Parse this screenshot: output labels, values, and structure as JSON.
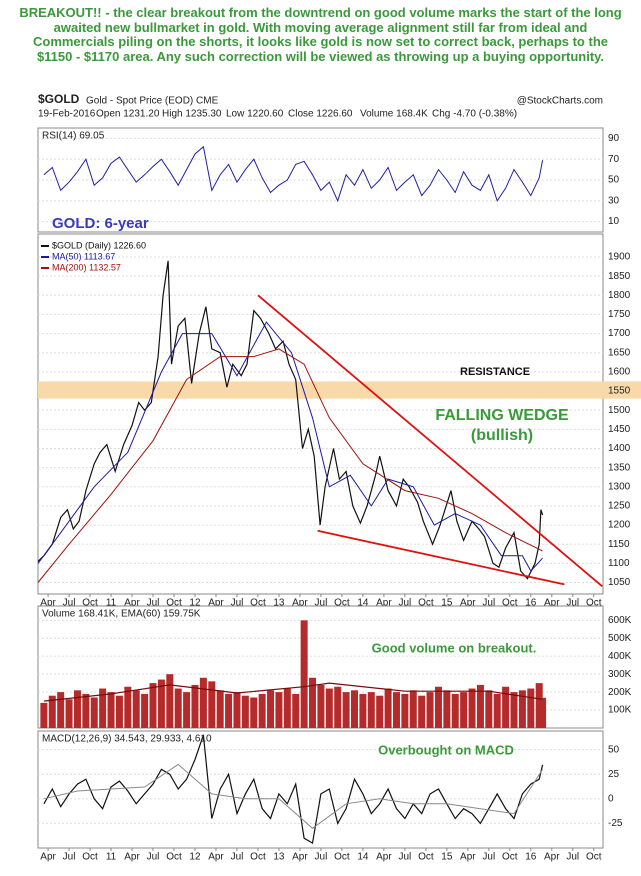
{
  "header": {
    "note": "BREAKOUT!! - the clear breakout from the downtrend on good volume marks the start of the long awaited new bullmarket in gold. With moving average alignment still far from ideal and Commercials piling on the shorts, it looks like gold is now set to correct back, perhaps to the $1150 - $1170 area. Any such correction will be viewed as throwing up a buying opportunity.",
    "symbol": "$GOLD",
    "name": "Gold - Spot Price (EOD) CME",
    "source": "@StockCharts.com",
    "date": "19-Feb-2016",
    "open": "Open 1231.20",
    "high": "High 1235.30",
    "low": "Low 1220.60",
    "close": "Close 1226.60",
    "volume": "Volume 168.4K",
    "change": "Chg -4.70 (-0.38%)"
  },
  "chart_data": [
    {
      "type": "line",
      "title": "RSI(14) 69.05",
      "color": "#2020a0",
      "xlim": [
        2010.13,
        2016.86
      ],
      "ylim": [
        0,
        100
      ],
      "yticks": [
        10,
        30,
        50,
        70,
        90
      ],
      "grid": true,
      "x": [
        2010.2,
        2010.3,
        2010.4,
        2010.5,
        2010.6,
        2010.7,
        2010.8,
        2010.9,
        2011.0,
        2011.1,
        2011.2,
        2011.3,
        2011.4,
        2011.5,
        2011.6,
        2011.7,
        2011.8,
        2011.9,
        2012.0,
        2012.1,
        2012.2,
        2012.3,
        2012.4,
        2012.5,
        2012.6,
        2012.7,
        2012.8,
        2012.9,
        2013.0,
        2013.1,
        2013.2,
        2013.3,
        2013.4,
        2013.5,
        2013.6,
        2013.7,
        2013.8,
        2013.9,
        2014.0,
        2014.1,
        2014.2,
        2014.3,
        2014.4,
        2014.5,
        2014.6,
        2014.7,
        2014.8,
        2014.9,
        2015.0,
        2015.1,
        2015.2,
        2015.3,
        2015.4,
        2015.5,
        2015.6,
        2015.7,
        2015.8,
        2015.9,
        2016.0,
        2016.1,
        2016.14
      ],
      "values": [
        55,
        62,
        40,
        48,
        58,
        70,
        45,
        52,
        66,
        72,
        60,
        48,
        55,
        63,
        70,
        58,
        45,
        60,
        75,
        82,
        40,
        55,
        65,
        48,
        60,
        70,
        52,
        38,
        45,
        50,
        65,
        68,
        55,
        40,
        48,
        30,
        55,
        45,
        60,
        42,
        50,
        62,
        40,
        48,
        55,
        35,
        45,
        60,
        50,
        38,
        58,
        45,
        40,
        55,
        30,
        42,
        60,
        48,
        35,
        52,
        69.05
      ]
    },
    {
      "type": "line",
      "title": "GOLD: 6-year",
      "xlim": [
        2010.13,
        2016.86
      ],
      "ylim": [
        1020,
        1960
      ],
      "yticks": [
        1050,
        1100,
        1150,
        1200,
        1250,
        1300,
        1350,
        1400,
        1450,
        1500,
        1550,
        1600,
        1650,
        1700,
        1750,
        1800,
        1850,
        1900
      ],
      "grid": true,
      "xticks": [
        {
          "value": 2010.25,
          "label": "Apr"
        },
        {
          "value": 2010.5,
          "label": "Jul"
        },
        {
          "value": 2010.75,
          "label": "Oct"
        },
        {
          "value": 2011,
          "label": "11"
        },
        {
          "value": 2011.25,
          "label": "Apr"
        },
        {
          "value": 2011.5,
          "label": "Jul"
        },
        {
          "value": 2011.75,
          "label": "Oct"
        },
        {
          "value": 2012,
          "label": "12"
        },
        {
          "value": 2012.25,
          "label": "Apr"
        },
        {
          "value": 2012.5,
          "label": "Jul"
        },
        {
          "value": 2012.75,
          "label": "Oct"
        },
        {
          "value": 2013,
          "label": "13"
        },
        {
          "value": 2013.25,
          "label": "Apr"
        },
        {
          "value": 2013.5,
          "label": "Jul"
        },
        {
          "value": 2013.75,
          "label": "Oct"
        },
        {
          "value": 2014,
          "label": "14"
        },
        {
          "value": 2014.25,
          "label": "Apr"
        },
        {
          "value": 2014.5,
          "label": "Jul"
        },
        {
          "value": 2014.75,
          "label": "Oct"
        },
        {
          "value": 2015,
          "label": "15"
        },
        {
          "value": 2015.25,
          "label": "Apr"
        },
        {
          "value": 2015.5,
          "label": "Jul"
        },
        {
          "value": 2015.75,
          "label": "Oct"
        },
        {
          "value": 2016,
          "label": "16"
        },
        {
          "value": 2016.25,
          "label": "Apr"
        },
        {
          "value": 2016.5,
          "label": "Jul"
        },
        {
          "value": 2016.75,
          "label": "Oct"
        }
      ],
      "resistance_band": [
        1530,
        1575
      ],
      "band_color": "#f9d9a8",
      "annotations": [
        "RESISTANCE",
        "FALLING WEDGE",
        "(bullish)"
      ],
      "trendlines": [
        {
          "x": [
            2012.75,
            2016.85
          ],
          "values": [
            1800,
            1040
          ]
        },
        {
          "x": [
            2013.46,
            2016.4
          ],
          "values": [
            1185,
            1045
          ]
        }
      ],
      "trend_color": "#e01010",
      "series": [
        {
          "name": "$GOLD (Daily) 1226.60",
          "color": "#111111",
          "x": [
            2010.13,
            2010.2,
            2010.3,
            2010.4,
            2010.48,
            2010.55,
            2010.62,
            2010.7,
            2010.8,
            2010.87,
            2010.95,
            2011.05,
            2011.15,
            2011.25,
            2011.33,
            2011.4,
            2011.48,
            2011.56,
            2011.62,
            2011.68,
            2011.72,
            2011.8,
            2011.88,
            2011.96,
            2012.05,
            2012.13,
            2012.2,
            2012.3,
            2012.38,
            2012.45,
            2012.55,
            2012.62,
            2012.7,
            2012.78,
            2012.88,
            2012.96,
            2013.05,
            2013.12,
            2013.2,
            2013.28,
            2013.35,
            2013.42,
            2013.49,
            2013.55,
            2013.65,
            2013.72,
            2013.8,
            2013.88,
            2013.97,
            2014.05,
            2014.15,
            2014.2,
            2014.3,
            2014.4,
            2014.48,
            2014.55,
            2014.65,
            2014.72,
            2014.83,
            2014.92,
            2015.05,
            2015.12,
            2015.2,
            2015.3,
            2015.38,
            2015.45,
            2015.55,
            2015.62,
            2015.7,
            2015.8,
            2015.88,
            2015.96,
            2016.05,
            2016.1,
            2016.12,
            2016.14
          ],
          "values": [
            1105,
            1120,
            1150,
            1220,
            1240,
            1190,
            1210,
            1290,
            1360,
            1390,
            1410,
            1340,
            1410,
            1460,
            1520,
            1500,
            1520,
            1640,
            1800,
            1890,
            1620,
            1720,
            1740,
            1570,
            1700,
            1770,
            1660,
            1650,
            1560,
            1620,
            1590,
            1620,
            1760,
            1740,
            1700,
            1660,
            1680,
            1620,
            1580,
            1400,
            1450,
            1380,
            1200,
            1300,
            1400,
            1320,
            1340,
            1250,
            1205,
            1250,
            1330,
            1380,
            1290,
            1250,
            1320,
            1300,
            1260,
            1210,
            1150,
            1200,
            1290,
            1210,
            1160,
            1210,
            1190,
            1170,
            1100,
            1090,
            1140,
            1180,
            1080,
            1060,
            1100,
            1150,
            1240,
            1226.6
          ]
        },
        {
          "name": "MA(50) 1113.67",
          "color": "#1a1aa0",
          "x": [
            2010.13,
            2010.4,
            2010.8,
            2011.2,
            2011.6,
            2011.85,
            2012.2,
            2012.5,
            2012.85,
            2013.15,
            2013.4,
            2013.6,
            2013.85,
            2014.1,
            2014.3,
            2014.6,
            2014.85,
            2015.1,
            2015.4,
            2015.65,
            2015.9,
            2016.0,
            2016.14
          ],
          "values": [
            1100,
            1180,
            1300,
            1390,
            1600,
            1700,
            1700,
            1590,
            1730,
            1650,
            1480,
            1300,
            1330,
            1250,
            1320,
            1300,
            1200,
            1230,
            1200,
            1120,
            1120,
            1080,
            1113.67
          ]
        },
        {
          "name": "MA(200) 1132.57",
          "color": "#a01010",
          "x": [
            2010.13,
            2010.5,
            2011.0,
            2011.5,
            2011.9,
            2012.3,
            2012.7,
            2013.0,
            2013.3,
            2013.6,
            2014.0,
            2014.5,
            2014.9,
            2015.3,
            2015.7,
            2016.14
          ],
          "values": [
            1050,
            1150,
            1280,
            1420,
            1580,
            1640,
            1640,
            1660,
            1620,
            1480,
            1360,
            1290,
            1270,
            1230,
            1180,
            1132.57
          ]
        }
      ]
    },
    {
      "type": "bar",
      "title": "Volume 168.41K, EMA(60) 159.75K",
      "color": "#b52a2a",
      "annotation": "Good volume on breakout.",
      "xlim": [
        2010.13,
        2016.86
      ],
      "ylim": [
        0,
        680000
      ],
      "yticks": [
        {
          "value": 100000,
          "label": "100K"
        },
        {
          "value": 200000,
          "label": "200K"
        },
        {
          "value": 300000,
          "label": "300K"
        },
        {
          "value": 400000,
          "label": "400K"
        },
        {
          "value": 500000,
          "label": "500K"
        },
        {
          "value": 600000,
          "label": "600K"
        }
      ],
      "grid": true,
      "x": [
        2010.2,
        2010.3,
        2010.4,
        2010.5,
        2010.6,
        2010.7,
        2010.8,
        2010.9,
        2011.0,
        2011.1,
        2011.2,
        2011.3,
        2011.4,
        2011.5,
        2011.6,
        2011.7,
        2011.8,
        2011.9,
        2012.0,
        2012.1,
        2012.2,
        2012.3,
        2012.4,
        2012.5,
        2012.6,
        2012.7,
        2012.8,
        2012.9,
        2013.0,
        2013.1,
        2013.2,
        2013.3,
        2013.4,
        2013.5,
        2013.6,
        2013.7,
        2013.8,
        2013.9,
        2014.0,
        2014.1,
        2014.2,
        2014.3,
        2014.4,
        2014.5,
        2014.6,
        2014.7,
        2014.8,
        2014.9,
        2015.0,
        2015.1,
        2015.2,
        2015.3,
        2015.4,
        2015.5,
        2015.6,
        2015.7,
        2015.8,
        2015.9,
        2016.0,
        2016.1,
        2016.14
      ],
      "values": [
        140000,
        180000,
        200000,
        160000,
        210000,
        190000,
        170000,
        220000,
        200000,
        180000,
        230000,
        210000,
        190000,
        250000,
        270000,
        300000,
        220000,
        200000,
        240000,
        280000,
        260000,
        210000,
        190000,
        200000,
        180000,
        170000,
        190000,
        210000,
        200000,
        220000,
        190000,
        600000,
        280000,
        240000,
        220000,
        230000,
        200000,
        210000,
        190000,
        200000,
        180000,
        220000,
        200000,
        190000,
        210000,
        180000,
        200000,
        230000,
        210000,
        190000,
        200000,
        220000,
        240000,
        210000,
        190000,
        230000,
        200000,
        210000,
        220000,
        250000,
        168410
      ],
      "ema": {
        "color": "#7a0a0a",
        "x": [
          2010.2,
          2011.0,
          2011.7,
          2012.5,
          2013.3,
          2013.6,
          2014.5,
          2015.5,
          2016.14
        ],
        "values": [
          150000,
          190000,
          240000,
          195000,
          230000,
          250000,
          205000,
          205000,
          159750
        ]
      }
    },
    {
      "type": "line",
      "title": "MACD(12,26,9) 34.543, 29.933, 4.610",
      "annotation": "Overbought on MACD",
      "xlim": [
        2010.13,
        2016.86
      ],
      "ylim": [
        -50,
        69
      ],
      "yticks": [
        -25,
        0,
        25,
        50
      ],
      "grid": true,
      "xticks": [
        {
          "value": 2010.25,
          "label": "Apr"
        },
        {
          "value": 2010.5,
          "label": "Jul"
        },
        {
          "value": 2010.75,
          "label": "Oct"
        },
        {
          "value": 2011,
          "label": "11"
        },
        {
          "value": 2011.25,
          "label": "Apr"
        },
        {
          "value": 2011.5,
          "label": "Jul"
        },
        {
          "value": 2011.75,
          "label": "Oct"
        },
        {
          "value": 2012,
          "label": "12"
        },
        {
          "value": 2012.25,
          "label": "Apr"
        },
        {
          "value": 2012.5,
          "label": "Jul"
        },
        {
          "value": 2012.75,
          "label": "Oct"
        },
        {
          "value": 2013,
          "label": "13"
        },
        {
          "value": 2013.25,
          "label": "Apr"
        },
        {
          "value": 2013.5,
          "label": "Jul"
        },
        {
          "value": 2013.75,
          "label": "Oct"
        },
        {
          "value": 2014,
          "label": "14"
        },
        {
          "value": 2014.25,
          "label": "Apr"
        },
        {
          "value": 2014.5,
          "label": "Jul"
        },
        {
          "value": 2014.75,
          "label": "Oct"
        },
        {
          "value": 2015,
          "label": "15"
        },
        {
          "value": 2015.25,
          "label": "Apr"
        },
        {
          "value": 2015.5,
          "label": "Jul"
        },
        {
          "value": 2015.75,
          "label": "Oct"
        },
        {
          "value": 2016,
          "label": "16"
        },
        {
          "value": 2016.25,
          "label": "Apr"
        },
        {
          "value": 2016.5,
          "label": "Jul"
        },
        {
          "value": 2016.75,
          "label": "Oct"
        }
      ],
      "series": [
        {
          "color": "#111111",
          "x": [
            2010.2,
            2010.3,
            2010.4,
            2010.5,
            2010.6,
            2010.7,
            2010.8,
            2010.9,
            2011.0,
            2011.1,
            2011.2,
            2011.3,
            2011.4,
            2011.5,
            2011.6,
            2011.7,
            2011.8,
            2011.9,
            2012.0,
            2012.1,
            2012.2,
            2012.3,
            2012.4,
            2012.5,
            2012.6,
            2012.7,
            2012.8,
            2012.9,
            2013.0,
            2013.1,
            2013.2,
            2013.3,
            2013.4,
            2013.5,
            2013.6,
            2013.7,
            2013.8,
            2013.9,
            2014.0,
            2014.1,
            2014.2,
            2014.3,
            2014.4,
            2014.5,
            2014.6,
            2014.7,
            2014.8,
            2014.9,
            2015.0,
            2015.1,
            2015.2,
            2015.3,
            2015.4,
            2015.5,
            2015.6,
            2015.7,
            2015.8,
            2015.9,
            2016.0,
            2016.1,
            2016.14
          ],
          "values": [
            -5,
            10,
            -8,
            5,
            15,
            20,
            0,
            -10,
            12,
            18,
            8,
            -5,
            5,
            15,
            30,
            25,
            10,
            20,
            40,
            65,
            -20,
            10,
            25,
            -15,
            5,
            20,
            -10,
            -20,
            5,
            -5,
            15,
            -40,
            -45,
            5,
            10,
            -25,
            -10,
            20,
            5,
            -15,
            -5,
            10,
            -10,
            -20,
            -5,
            -15,
            5,
            10,
            -5,
            -20,
            -10,
            -15,
            -25,
            -10,
            5,
            -10,
            -20,
            5,
            15,
            20,
            34.543
          ]
        },
        {
          "color": "#8a8a8a",
          "x": [
            2010.2,
            2010.6,
            2011.0,
            2011.4,
            2011.8,
            2012.2,
            2012.6,
            2013.0,
            2013.4,
            2013.8,
            2014.2,
            2014.6,
            2015.0,
            2015.4,
            2015.8,
            2016.14
          ],
          "values": [
            0,
            8,
            10,
            12,
            35,
            5,
            0,
            0,
            -30,
            -5,
            0,
            -5,
            -5,
            -10,
            -15,
            29.933
          ]
        }
      ]
    }
  ]
}
